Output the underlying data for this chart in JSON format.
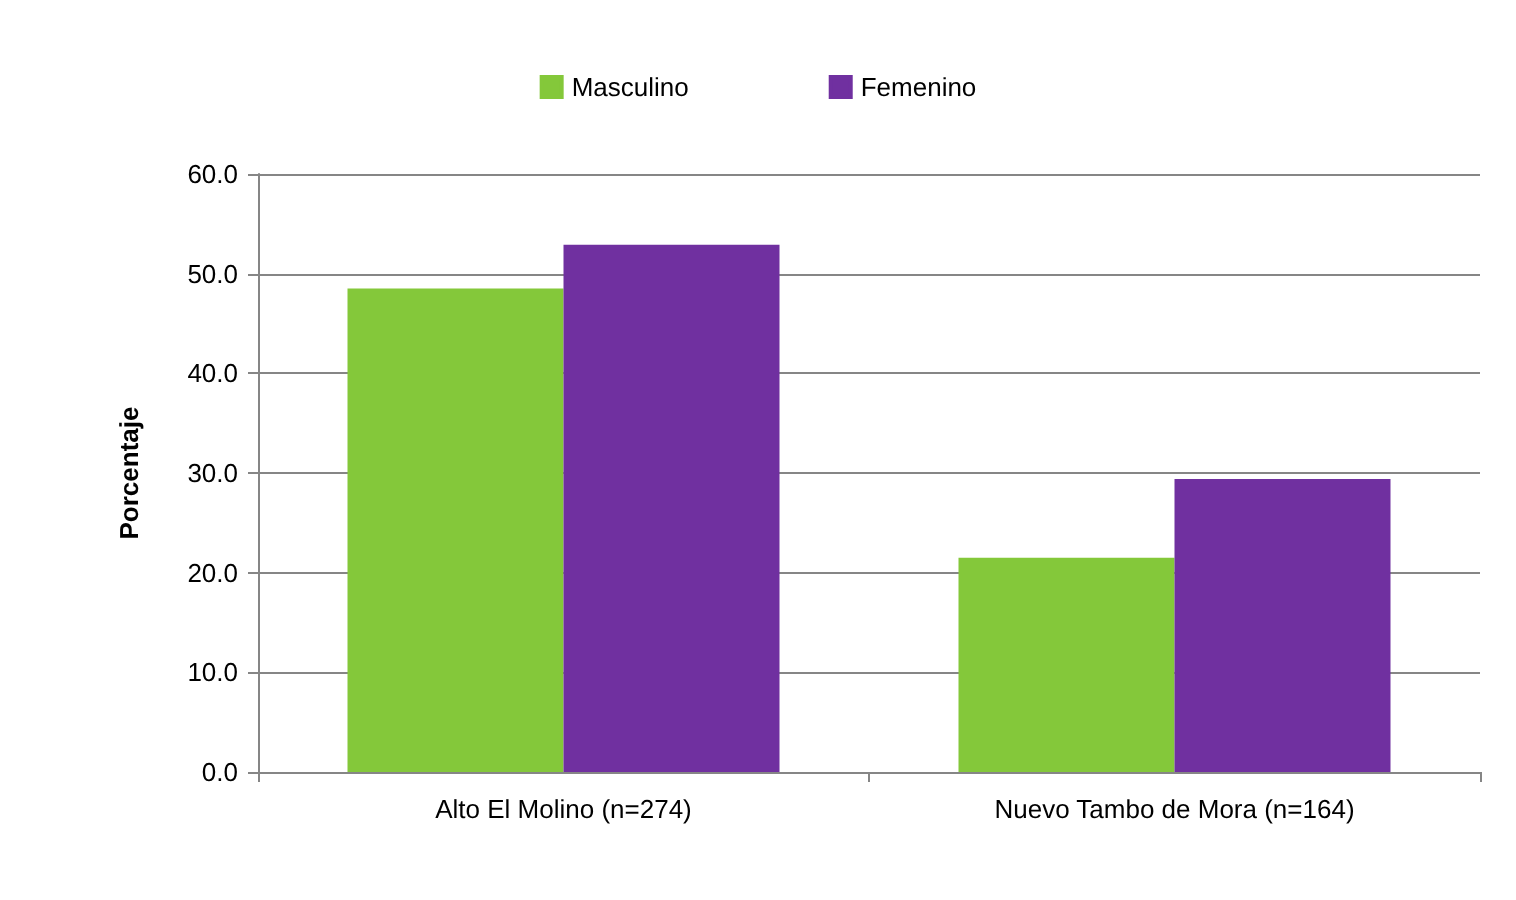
{
  "chart_data": {
    "type": "bar",
    "ylabel": "Porcentaje",
    "categories": [
      "Alto El Molino (n=274)",
      "Nuevo Tambo de Mora (n=164)"
    ],
    "series": [
      {
        "name": "Masculino",
        "color": "#84c83a",
        "values": [
          48.5,
          21.5
        ]
      },
      {
        "name": "Femenino",
        "color": "#7030a0",
        "values": [
          52.9,
          29.4
        ]
      }
    ],
    "ylim": [
      0,
      60
    ],
    "yticks": [
      {
        "value": 0,
        "label": "0.0"
      },
      {
        "value": 10,
        "label": "10.0"
      },
      {
        "value": 20,
        "label": "20.0"
      },
      {
        "value": 30,
        "label": "30.0"
      },
      {
        "value": 40,
        "label": "40.0"
      },
      {
        "value": 50,
        "label": "50.0"
      },
      {
        "value": 60,
        "label": "60.0"
      }
    ],
    "grid": "y",
    "legend": "top"
  }
}
